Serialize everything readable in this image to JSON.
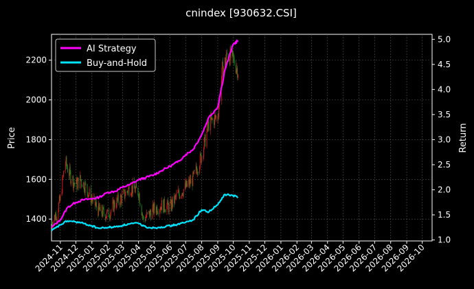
{
  "chart_data": {
    "type": "line",
    "title": "cnindex [930632.CSI]",
    "ylabel_left": "Price",
    "ylabel_right": "Return",
    "x_ticks": [
      "2024-11",
      "2024-12",
      "2025-01",
      "2025-02",
      "2025-03",
      "2025-04",
      "2025-05",
      "2025-06",
      "2025-07",
      "2025-08",
      "2025-09",
      "2025-10",
      "2025-11",
      "2025-12",
      "2026-01",
      "2026-02",
      "2026-03",
      "2026-04",
      "2026-05",
      "2026-06",
      "2026-07",
      "2026-08",
      "2026-09",
      "2026-10"
    ],
    "x_range": [
      "2024-10-15",
      "2026-10-20"
    ],
    "y_left_ticks": [
      1400,
      1600,
      1800,
      2000,
      2200
    ],
    "y_left_range": [
      1290,
      2330
    ],
    "y_right_ticks": [
      1.0,
      1.5,
      2.0,
      2.5,
      3.0,
      3.5,
      4.0,
      4.5,
      5.0
    ],
    "y_right_range": [
      0.98,
      5.1
    ],
    "grid": true,
    "legend_position": "top-left",
    "colors": {
      "ai_strategy": "#ff00ff",
      "buy_and_hold": "#00e5ff",
      "candle_up": "#d62020",
      "candle_down": "#1f8a1f",
      "grid": "#555555"
    },
    "series": [
      {
        "name": "AI Strategy",
        "axis": "right",
        "points": [
          [
            "2024-10-15",
            1.25
          ],
          [
            "2024-11-01",
            1.4
          ],
          [
            "2024-11-15",
            1.65
          ],
          [
            "2024-12-01",
            1.75
          ],
          [
            "2024-12-15",
            1.8
          ],
          [
            "2025-01-01",
            1.82
          ],
          [
            "2025-01-15",
            1.85
          ],
          [
            "2025-02-01",
            1.95
          ],
          [
            "2025-02-15",
            1.97
          ],
          [
            "2025-03-01",
            2.05
          ],
          [
            "2025-03-15",
            2.1
          ],
          [
            "2025-04-01",
            2.2
          ],
          [
            "2025-04-15",
            2.24
          ],
          [
            "2025-05-01",
            2.3
          ],
          [
            "2025-05-15",
            2.38
          ],
          [
            "2025-06-01",
            2.47
          ],
          [
            "2025-06-15",
            2.55
          ],
          [
            "2025-07-01",
            2.7
          ],
          [
            "2025-07-15",
            2.8
          ],
          [
            "2025-08-01",
            3.1
          ],
          [
            "2025-08-15",
            3.45
          ],
          [
            "2025-09-01",
            3.65
          ],
          [
            "2025-09-15",
            4.4
          ],
          [
            "2025-10-01",
            4.9
          ],
          [
            "2025-10-10",
            4.98
          ]
        ]
      },
      {
        "name": "Buy-and-Hold",
        "axis": "right",
        "points": [
          [
            "2024-10-15",
            1.18
          ],
          [
            "2024-11-01",
            1.3
          ],
          [
            "2024-11-15",
            1.38
          ],
          [
            "2024-12-01",
            1.36
          ],
          [
            "2024-12-15",
            1.33
          ],
          [
            "2025-01-01",
            1.28
          ],
          [
            "2025-01-15",
            1.23
          ],
          [
            "2025-02-01",
            1.25
          ],
          [
            "2025-02-15",
            1.26
          ],
          [
            "2025-03-01",
            1.29
          ],
          [
            "2025-03-15",
            1.32
          ],
          [
            "2025-04-01",
            1.33
          ],
          [
            "2025-04-15",
            1.26
          ],
          [
            "2025-05-01",
            1.24
          ],
          [
            "2025-05-15",
            1.26
          ],
          [
            "2025-06-01",
            1.28
          ],
          [
            "2025-06-15",
            1.31
          ],
          [
            "2025-07-01",
            1.35
          ],
          [
            "2025-07-15",
            1.4
          ],
          [
            "2025-08-01",
            1.6
          ],
          [
            "2025-08-15",
            1.56
          ],
          [
            "2025-09-01",
            1.7
          ],
          [
            "2025-09-15",
            1.91
          ],
          [
            "2025-10-01",
            1.88
          ],
          [
            "2025-10-10",
            1.86
          ]
        ]
      },
      {
        "name": "",
        "type": "candlestick",
        "axis": "left",
        "points": [
          [
            "2024-10-15",
            1380
          ],
          [
            "2024-10-25",
            1430
          ],
          [
            "2024-11-01",
            1500
          ],
          [
            "2024-11-10",
            1690
          ],
          [
            "2024-11-20",
            1620
          ],
          [
            "2024-12-01",
            1570
          ],
          [
            "2024-12-10",
            1600
          ],
          [
            "2024-12-20",
            1560
          ],
          [
            "2025-01-01",
            1500
          ],
          [
            "2025-01-15",
            1440
          ],
          [
            "2025-02-01",
            1420
          ],
          [
            "2025-02-15",
            1480
          ],
          [
            "2025-03-01",
            1510
          ],
          [
            "2025-03-15",
            1560
          ],
          [
            "2025-04-01",
            1540
          ],
          [
            "2025-04-10",
            1400
          ],
          [
            "2025-04-20",
            1420
          ],
          [
            "2025-05-01",
            1450
          ],
          [
            "2025-05-15",
            1470
          ],
          [
            "2025-06-01",
            1460
          ],
          [
            "2025-06-15",
            1520
          ],
          [
            "2025-07-01",
            1560
          ],
          [
            "2025-07-15",
            1600
          ],
          [
            "2025-08-01",
            1720
          ],
          [
            "2025-08-15",
            1880
          ],
          [
            "2025-09-01",
            1920
          ],
          [
            "2025-09-10",
            2150
          ],
          [
            "2025-09-20",
            2230
          ],
          [
            "2025-10-01",
            2200
          ],
          [
            "2025-10-10",
            2150
          ]
        ]
      }
    ]
  }
}
